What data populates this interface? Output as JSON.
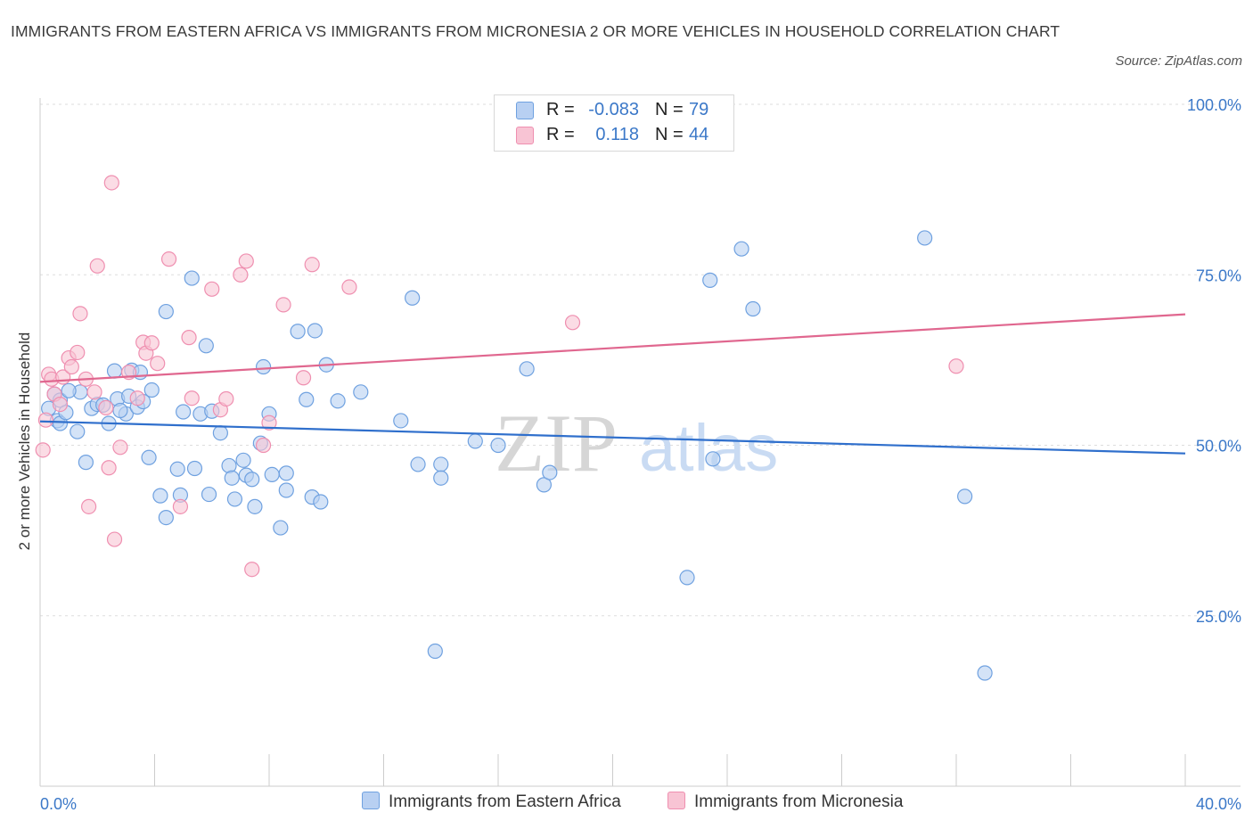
{
  "title": "IMMIGRANTS FROM EASTERN AFRICA VS IMMIGRANTS FROM MICRONESIA 2 OR MORE VEHICLES IN HOUSEHOLD CORRELATION CHART",
  "source": "Source: ZipAtlas.com",
  "watermark": {
    "zip": "ZIP",
    "atlas": "atlas"
  },
  "legend": {
    "r_label": "R =",
    "n_label": "N =",
    "rows": [
      {
        "r": "-0.083",
        "n": "79",
        "color": "#6fa1e0"
      },
      {
        "r": "0.118",
        "n": "44",
        "color": "#ef8fb0"
      }
    ]
  },
  "bottom_legend": [
    {
      "label": "Immigrants from Eastern Africa"
    },
    {
      "label": "Immigrants from Micronesia"
    }
  ],
  "chart_data": {
    "type": "scatter",
    "title": "IMMIGRANTS FROM EASTERN AFRICA VS IMMIGRANTS FROM MICRONESIA 2 OR MORE VEHICLES IN HOUSEHOLD CORRELATION CHART",
    "ylabel": "2 or more Vehicles in Household",
    "xlabel": "",
    "xlim": [
      0,
      40
    ],
    "ylim": [
      0,
      108
    ],
    "x_tick_labels": [
      "0.0%",
      "40.0%"
    ],
    "y_ticks": [
      25,
      50,
      75,
      100
    ],
    "y_tick_labels": [
      "25.0%",
      "50.0%",
      "75.0%",
      "100.0%"
    ],
    "grid": "horizontal dashed",
    "colors": {
      "blue_fill": "#b8d0f2",
      "blue_stroke": "#6fa1e0",
      "blue_line": "#2f6fcc",
      "pink_fill": "#f8c4d4",
      "pink_stroke": "#ef8fb0",
      "pink_line": "#e0678f",
      "axis_text": "#3b78c8"
    },
    "series": [
      {
        "name": "Immigrants from Eastern Africa",
        "trend": {
          "x": [
            0,
            40
          ],
          "y": [
            53.5,
            48.8
          ]
        },
        "points": [
          [
            0.3,
            55.4
          ],
          [
            0.5,
            57.5
          ],
          [
            0.6,
            53.6
          ],
          [
            0.7,
            56.6
          ],
          [
            0.7,
            53.2
          ],
          [
            0.9,
            54.8
          ],
          [
            1.3,
            52.0
          ],
          [
            1.4,
            57.8
          ],
          [
            1.6,
            47.5
          ],
          [
            1.8,
            55.4
          ],
          [
            2.0,
            56.0
          ],
          [
            2.2,
            55.9
          ],
          [
            2.4,
            53.2
          ],
          [
            2.6,
            60.9
          ],
          [
            2.7,
            56.8
          ],
          [
            3.0,
            54.6
          ],
          [
            3.1,
            57.2
          ],
          [
            3.2,
            61.0
          ],
          [
            3.4,
            55.6
          ],
          [
            3.6,
            56.4
          ],
          [
            3.8,
            48.2
          ],
          [
            3.9,
            58.1
          ],
          [
            4.2,
            42.6
          ],
          [
            4.4,
            39.4
          ],
          [
            4.4,
            69.6
          ],
          [
            4.8,
            46.5
          ],
          [
            4.9,
            42.7
          ],
          [
            5.0,
            54.9
          ],
          [
            5.3,
            74.5
          ],
          [
            5.4,
            46.6
          ],
          [
            5.6,
            54.6
          ],
          [
            5.8,
            64.6
          ],
          [
            5.9,
            42.8
          ],
          [
            6.3,
            51.8
          ],
          [
            6.6,
            47.0
          ],
          [
            6.7,
            45.2
          ],
          [
            6.8,
            42.1
          ],
          [
            7.1,
            47.8
          ],
          [
            7.2,
            45.6
          ],
          [
            7.4,
            45.0
          ],
          [
            7.5,
            41.0
          ],
          [
            7.7,
            50.3
          ],
          [
            7.8,
            61.5
          ],
          [
            8.0,
            54.6
          ],
          [
            8.1,
            45.7
          ],
          [
            8.4,
            37.9
          ],
          [
            8.6,
            43.4
          ],
          [
            8.6,
            45.9
          ],
          [
            9.0,
            66.7
          ],
          [
            9.3,
            56.7
          ],
          [
            9.5,
            42.4
          ],
          [
            9.6,
            66.8
          ],
          [
            9.8,
            41.7
          ],
          [
            10.0,
            61.8
          ],
          [
            10.4,
            56.5
          ],
          [
            11.2,
            57.8
          ],
          [
            12.6,
            53.6
          ],
          [
            13.0,
            71.6
          ],
          [
            13.2,
            47.2
          ],
          [
            14.0,
            47.2
          ],
          [
            14.0,
            45.2
          ],
          [
            13.8,
            19.8
          ],
          [
            15.2,
            50.6
          ],
          [
            16.0,
            50.0
          ],
          [
            17.0,
            61.2
          ],
          [
            17.6,
            44.2
          ],
          [
            17.8,
            46.0
          ],
          [
            22.6,
            30.6
          ],
          [
            23.5,
            48.0
          ],
          [
            23.4,
            74.2
          ],
          [
            24.5,
            78.8
          ],
          [
            24.9,
            70.0
          ],
          [
            30.9,
            80.4
          ],
          [
            32.3,
            42.5
          ],
          [
            33.0,
            16.6
          ],
          [
            2.8,
            55.1
          ],
          [
            3.5,
            60.7
          ],
          [
            1.0,
            58.0
          ],
          [
            6.0,
            55.0
          ]
        ]
      },
      {
        "name": "Immigrants from Micronesia",
        "trend": {
          "x": [
            0,
            40
          ],
          "y": [
            59.3,
            69.2
          ]
        },
        "points": [
          [
            0.1,
            49.3
          ],
          [
            0.3,
            60.4
          ],
          [
            0.4,
            59.7
          ],
          [
            0.5,
            57.5
          ],
          [
            0.7,
            56.0
          ],
          [
            0.8,
            60.0
          ],
          [
            1.0,
            62.8
          ],
          [
            1.1,
            61.5
          ],
          [
            1.3,
            63.6
          ],
          [
            1.4,
            69.3
          ],
          [
            1.6,
            59.7
          ],
          [
            1.7,
            41.0
          ],
          [
            1.9,
            57.8
          ],
          [
            2.0,
            76.3
          ],
          [
            2.3,
            55.5
          ],
          [
            2.4,
            46.7
          ],
          [
            2.5,
            88.5
          ],
          [
            2.6,
            36.2
          ],
          [
            2.8,
            49.7
          ],
          [
            3.1,
            60.7
          ],
          [
            3.4,
            56.9
          ],
          [
            3.6,
            65.1
          ],
          [
            3.7,
            63.5
          ],
          [
            3.9,
            65.0
          ],
          [
            4.1,
            62.0
          ],
          [
            4.5,
            77.3
          ],
          [
            4.9,
            41.0
          ],
          [
            5.2,
            65.8
          ],
          [
            5.3,
            56.9
          ],
          [
            6.0,
            72.9
          ],
          [
            6.3,
            55.2
          ],
          [
            6.5,
            56.8
          ],
          [
            7.0,
            75.0
          ],
          [
            7.2,
            77.0
          ],
          [
            7.4,
            31.8
          ],
          [
            7.8,
            50.0
          ],
          [
            8.0,
            53.3
          ],
          [
            8.5,
            70.6
          ],
          [
            9.2,
            59.9
          ],
          [
            9.5,
            76.5
          ],
          [
            10.8,
            73.2
          ],
          [
            18.6,
            68.0
          ],
          [
            32.0,
            61.6
          ],
          [
            0.2,
            53.7
          ]
        ]
      }
    ]
  }
}
